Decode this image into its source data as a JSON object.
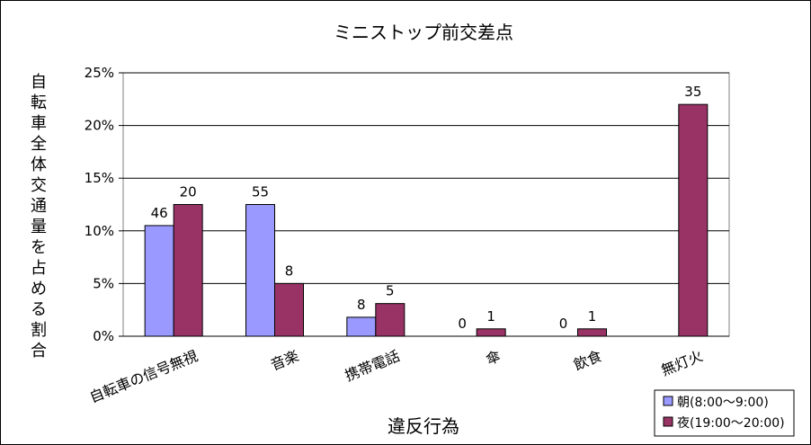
{
  "chart_data": {
    "type": "bar",
    "title": "ミニストップ前交差点",
    "xlabel": "違反行為",
    "ylabel": "自転車全体交通量を占める割合",
    "categories": [
      "自転車の信号無視",
      "音楽",
      "携帯電話",
      "傘",
      "飲食",
      "無灯火"
    ],
    "ylim": [
      0,
      25
    ],
    "yticks": [
      "0%",
      "5%",
      "10%",
      "15%",
      "20%",
      "25%"
    ],
    "ytick_values": [
      0,
      5,
      10,
      15,
      20,
      25
    ],
    "grid": true,
    "legend_position": "bottom-right",
    "series": [
      {
        "name": "朝(8:00～9:00)",
        "color": "#9999FF",
        "values": [
          10.5,
          12.5,
          1.8,
          0,
          0,
          null
        ],
        "data_labels": [
          "46",
          "55",
          "8",
          "0",
          "0",
          null
        ]
      },
      {
        "name": "夜(19:00～20:00)",
        "color": "#993366",
        "values": [
          12.5,
          5.0,
          3.1,
          0.7,
          0.7,
          22.0
        ],
        "data_labels": [
          "20",
          "8",
          "5",
          "1",
          "1",
          "35"
        ]
      }
    ]
  }
}
